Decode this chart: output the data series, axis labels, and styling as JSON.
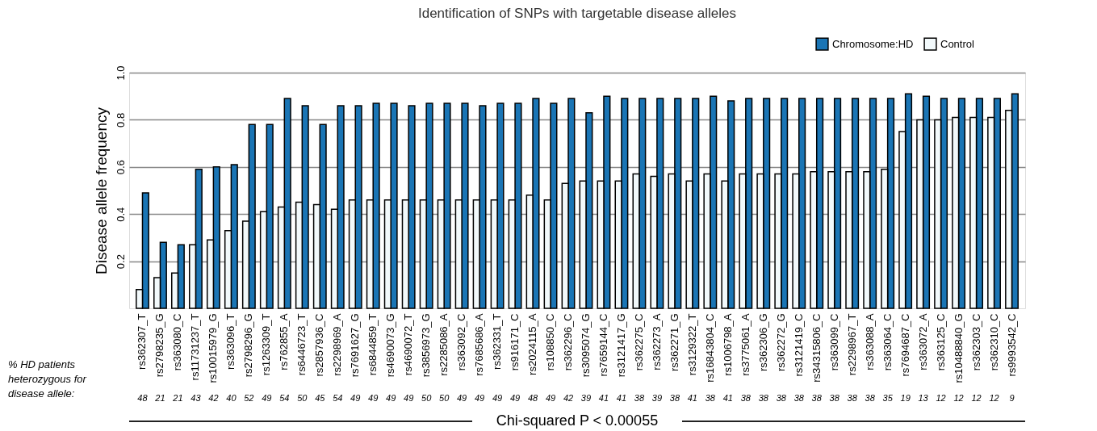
{
  "chart_data": {
    "type": "bar",
    "title": "Identification of SNPs with targetable disease alleles",
    "ylabel": "Disease allele frequency",
    "categories": [
      "rs362307_T",
      "rs2798235_G",
      "rs363080_C",
      "rs11731237_T",
      "rs10015979_G",
      "rs363096_T",
      "rs2798296_G",
      "rs1263309_T",
      "rs762855_A",
      "rs6446723_T",
      "rs2857936_C",
      "rs2298969_A",
      "rs7691627_G",
      "rs6844859_T",
      "rs4690073_G",
      "rs4690072_T",
      "rs3856973_G",
      "rs2285086_A",
      "rs363092_C",
      "rs7685686_A",
      "rs362331_T",
      "rs916171_C",
      "rs2024115_A",
      "rs108850_C",
      "rs362296_C",
      "rs3095074_G",
      "rs7659144_C",
      "rs3121417_G",
      "rs362275_C",
      "rs362273_A",
      "rs362271_G",
      "rs3129322_T",
      "rs16843804_C",
      "rs1006798_A",
      "rs3775061_A",
      "rs362306_G",
      "rs362272_G",
      "rs3121419_C",
      "rs34315806_C",
      "rs363099_C",
      "rs2298967_T",
      "rs363088_A",
      "rs363064_C",
      "rs7694687_C",
      "rs363072_A",
      "rs363125_C",
      "rs10488840_G",
      "rs362303_C",
      "rs362310_C",
      "rs9993542_C"
    ],
    "series": [
      {
        "name": "Chromosome:HD",
        "color": "#1a75b5",
        "values": [
          0.49,
          0.28,
          0.27,
          0.59,
          0.6,
          0.61,
          0.78,
          0.78,
          0.89,
          0.86,
          0.78,
          0.86,
          0.86,
          0.87,
          0.87,
          0.86,
          0.87,
          0.87,
          0.87,
          0.86,
          0.87,
          0.87,
          0.89,
          0.87,
          0.89,
          0.83,
          0.9,
          0.89,
          0.89,
          0.89,
          0.89,
          0.89,
          0.9,
          0.88,
          0.89,
          0.89,
          0.89,
          0.89,
          0.89,
          0.89,
          0.89,
          0.89,
          0.89,
          0.91,
          0.9,
          0.89,
          0.89,
          0.89,
          0.89,
          0.91
        ]
      },
      {
        "name": "Control",
        "color": "#f2f9fb",
        "values": [
          0.08,
          0.13,
          0.15,
          0.27,
          0.29,
          0.33,
          0.37,
          0.41,
          0.43,
          0.45,
          0.44,
          0.42,
          0.46,
          0.46,
          0.46,
          0.46,
          0.46,
          0.46,
          0.46,
          0.46,
          0.46,
          0.46,
          0.48,
          0.46,
          0.53,
          0.54,
          0.54,
          0.54,
          0.57,
          0.56,
          0.57,
          0.54,
          0.57,
          0.54,
          0.57,
          0.57,
          0.57,
          0.57,
          0.58,
          0.58,
          0.58,
          0.58,
          0.59,
          0.75,
          0.8,
          0.8,
          0.81,
          0.81,
          0.81,
          0.84
        ]
      }
    ],
    "ylim": [
      0,
      1.0
    ],
    "yticks": [
      0.2,
      0.4,
      0.6,
      0.8,
      {
        "value": 1.0,
        "label": "1.0"
      }
    ],
    "grid": "y",
    "legend": "top right",
    "annotations": [
      "% HD patients heterozygous for disease allele:",
      "Chi-squared P < 0.00055",
      "48",
      "21",
      "21",
      "43",
      "42",
      "40",
      "52",
      "49",
      "54",
      "50",
      "45",
      "54",
      "49",
      "49",
      "49",
      "49",
      "50",
      "50",
      "49",
      "49",
      "49",
      "49",
      "48",
      "49",
      "42",
      "39",
      "41",
      "41",
      "38",
      "39",
      "38",
      "41",
      "38",
      "41",
      "38",
      "38",
      "38",
      "38",
      "38",
      "38",
      "38",
      "38",
      "35",
      "19",
      "13",
      "12",
      "12",
      "12",
      "12",
      "9"
    ]
  }
}
